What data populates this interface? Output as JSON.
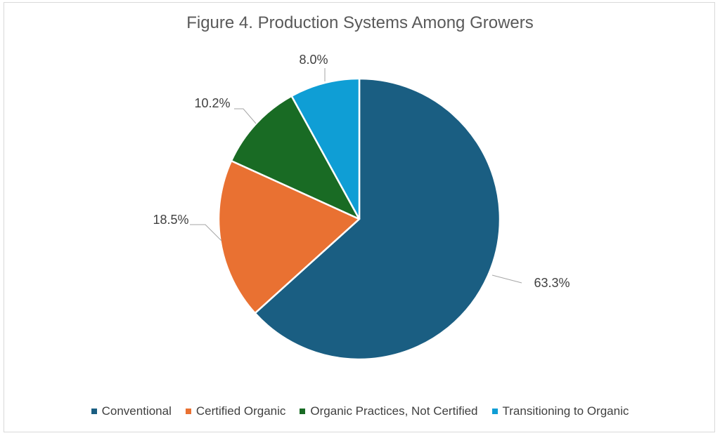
{
  "chart_data": {
    "type": "pie",
    "title": "Figure 4. Production Systems Among Growers",
    "start_angle_deg": 0,
    "direction": "clockwise",
    "legend_position": "bottom",
    "slices": [
      {
        "name": "Conventional",
        "value": 63.3,
        "label": "63.3%",
        "color": "#1a5e82"
      },
      {
        "name": "Certified Organic",
        "value": 18.5,
        "label": "18.5%",
        "color": "#e97132"
      },
      {
        "name": "Organic Practices, Not Certified",
        "value": 10.2,
        "label": "10.2%",
        "color": "#196b24"
      },
      {
        "name": "Transitioning to Organic",
        "value": 8.0,
        "label": "8.0%",
        "color": "#0f9ed5"
      }
    ]
  }
}
